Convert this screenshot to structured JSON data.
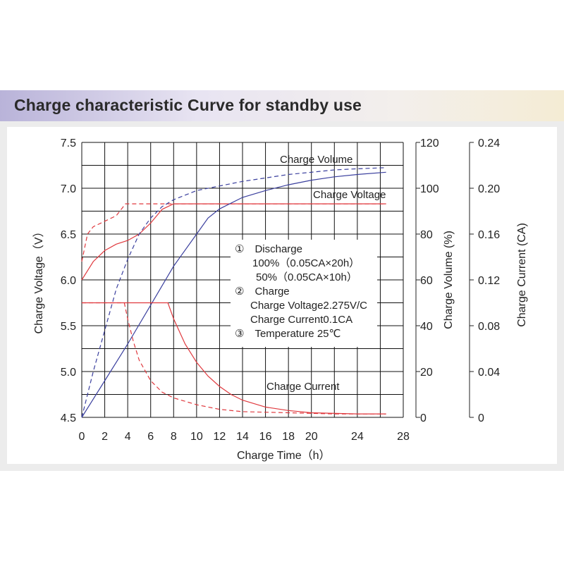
{
  "title": "Charge characteristic Curve for standby use",
  "colors": {
    "grid": "#111111",
    "voltage": "#e0393e",
    "current": "#e0393e",
    "volume": "#3a3f9e",
    "axis": "#222222"
  },
  "chart_data": {
    "type": "line",
    "xlabel": "Charge Time（h）",
    "ylabel_left": "Charge Voltage（V）",
    "ylabel_mid": "Charge Volume (%)",
    "ylabel_right": "Charge Current (CA)",
    "grid": true,
    "xlim": [
      0,
      28
    ],
    "ylim_voltage": [
      4.5,
      7.5
    ],
    "ylim_volume": [
      0,
      120
    ],
    "ylim_current": [
      0,
      0.24
    ],
    "x_ticks": [
      "0",
      "2",
      "4",
      "6",
      "8",
      "10",
      "12",
      "14",
      "16",
      "18",
      "20",
      "24",
      "28"
    ],
    "voltage_ticks": [
      "4.5",
      "5.0",
      "5.5",
      "6.0",
      "6.5",
      "7.0",
      "7.5"
    ],
    "volume_ticks": [
      "0",
      "20",
      "40",
      "60",
      "80",
      "100",
      "120"
    ],
    "current_ticks": [
      "0",
      "0.04",
      "0.08",
      "0.12",
      "0.16",
      "0.20",
      "0.24"
    ],
    "series": [
      {
        "axis": "voltage",
        "style": "solid",
        "points": [
          [
            0,
            6.0
          ],
          [
            1,
            6.2
          ],
          [
            2,
            6.32
          ],
          [
            3,
            6.39
          ],
          [
            4,
            6.43
          ],
          [
            5,
            6.5
          ],
          [
            6,
            6.62
          ],
          [
            7,
            6.77
          ],
          [
            8,
            6.83
          ],
          [
            10,
            6.83
          ],
          [
            14,
            6.83
          ],
          [
            20,
            6.83
          ],
          [
            24,
            6.83
          ],
          [
            26.5,
            6.83
          ]
        ]
      },
      {
        "axis": "voltage",
        "style": "dashed",
        "points": [
          [
            0,
            6.2
          ],
          [
            0.5,
            6.5
          ],
          [
            1,
            6.58
          ],
          [
            2,
            6.64
          ],
          [
            3,
            6.7
          ],
          [
            3.5,
            6.78
          ],
          [
            3.8,
            6.83
          ],
          [
            5,
            6.83
          ],
          [
            10,
            6.83
          ],
          [
            20,
            6.83
          ],
          [
            26.5,
            6.83
          ]
        ]
      },
      {
        "axis": "volume",
        "style": "solid",
        "points": [
          [
            0,
            0
          ],
          [
            2,
            16
          ],
          [
            4,
            32
          ],
          [
            6,
            49
          ],
          [
            8,
            66
          ],
          [
            10,
            80
          ],
          [
            11,
            87
          ],
          [
            12,
            91
          ],
          [
            14,
            96
          ],
          [
            16,
            99
          ],
          [
            18,
            101.5
          ],
          [
            20,
            103.5
          ],
          [
            22,
            105
          ],
          [
            24,
            106
          ],
          [
            26.5,
            107
          ]
        ]
      },
      {
        "axis": "volume",
        "style": "dashed",
        "points": [
          [
            0,
            0
          ],
          [
            1,
            20
          ],
          [
            2,
            38
          ],
          [
            3,
            56
          ],
          [
            4,
            69
          ],
          [
            5,
            80
          ],
          [
            6,
            87
          ],
          [
            7,
            92
          ],
          [
            8,
            95
          ],
          [
            10,
            99
          ],
          [
            12,
            101
          ],
          [
            14,
            103
          ],
          [
            16,
            104.5
          ],
          [
            18,
            106
          ],
          [
            20,
            107
          ],
          [
            22,
            108
          ],
          [
            24,
            108.5
          ],
          [
            26.5,
            109
          ]
        ]
      },
      {
        "axis": "current",
        "style": "solid",
        "points": [
          [
            0,
            0.1
          ],
          [
            4,
            0.1
          ],
          [
            7.5,
            0.1
          ],
          [
            8,
            0.086
          ],
          [
            9,
            0.064
          ],
          [
            10,
            0.048
          ],
          [
            11,
            0.036
          ],
          [
            12,
            0.027
          ],
          [
            13,
            0.02
          ],
          [
            14,
            0.015
          ],
          [
            16,
            0.009
          ],
          [
            18,
            0.006
          ],
          [
            20,
            0.004
          ],
          [
            24,
            0.003
          ],
          [
            26.5,
            0.003
          ]
        ]
      },
      {
        "axis": "current",
        "style": "dashed",
        "points": [
          [
            0,
            0.1
          ],
          [
            3.7,
            0.1
          ],
          [
            4,
            0.086
          ],
          [
            4.5,
            0.066
          ],
          [
            5,
            0.05
          ],
          [
            6,
            0.032
          ],
          [
            7,
            0.022
          ],
          [
            8,
            0.017
          ],
          [
            10,
            0.011
          ],
          [
            12,
            0.007
          ],
          [
            14,
            0.005
          ],
          [
            18,
            0.004
          ],
          [
            22,
            0.003
          ],
          [
            26.5,
            0.003
          ]
        ]
      }
    ],
    "annotations": [
      "Charge Volume",
      "Charge Voltage",
      "Charge Current",
      "①　Discharge",
      "100%（0.05CA×20h）",
      "50%（0.05CA×10h）",
      "②　Charge",
      "Charge Voltage2.275V/C",
      "Charge Current0.1CA",
      "③　Temperature 25℃"
    ]
  }
}
